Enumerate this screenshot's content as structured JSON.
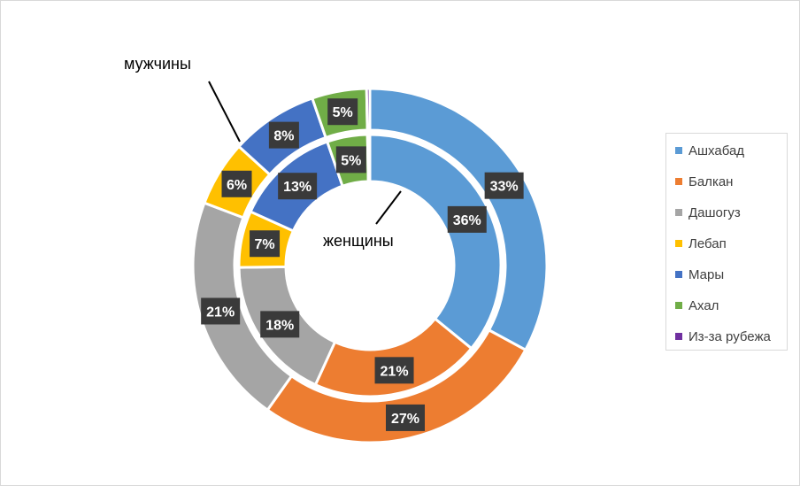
{
  "chart_data": {
    "type": "doughnut",
    "categories": [
      "Ашхабад",
      "Балкан",
      "Дашогуз",
      "Лебап",
      "Мары",
      "Ахал",
      "Из-за рубежа"
    ],
    "colors": [
      "#5b9bd5",
      "#ed7d31",
      "#a5a5a5",
      "#ffc000",
      "#4472c4",
      "#70ad47",
      "#7030a0"
    ],
    "series": [
      {
        "name": "женщины",
        "ring": "inner",
        "values": [
          36,
          21,
          18,
          7,
          13,
          5,
          0.3
        ],
        "labels": [
          "36%",
          "21%",
          "18%",
          "7%",
          "13%",
          "5%",
          ""
        ]
      },
      {
        "name": "мужчины",
        "ring": "outer",
        "values": [
          33,
          27,
          21,
          6,
          8,
          5,
          0.3
        ],
        "labels": [
          "33%",
          "27%",
          "21%",
          "6%",
          "8%",
          "5%",
          ""
        ]
      }
    ],
    "legend_position": "right"
  },
  "annotations": {
    "men": "мужчины",
    "women": "женщины"
  }
}
